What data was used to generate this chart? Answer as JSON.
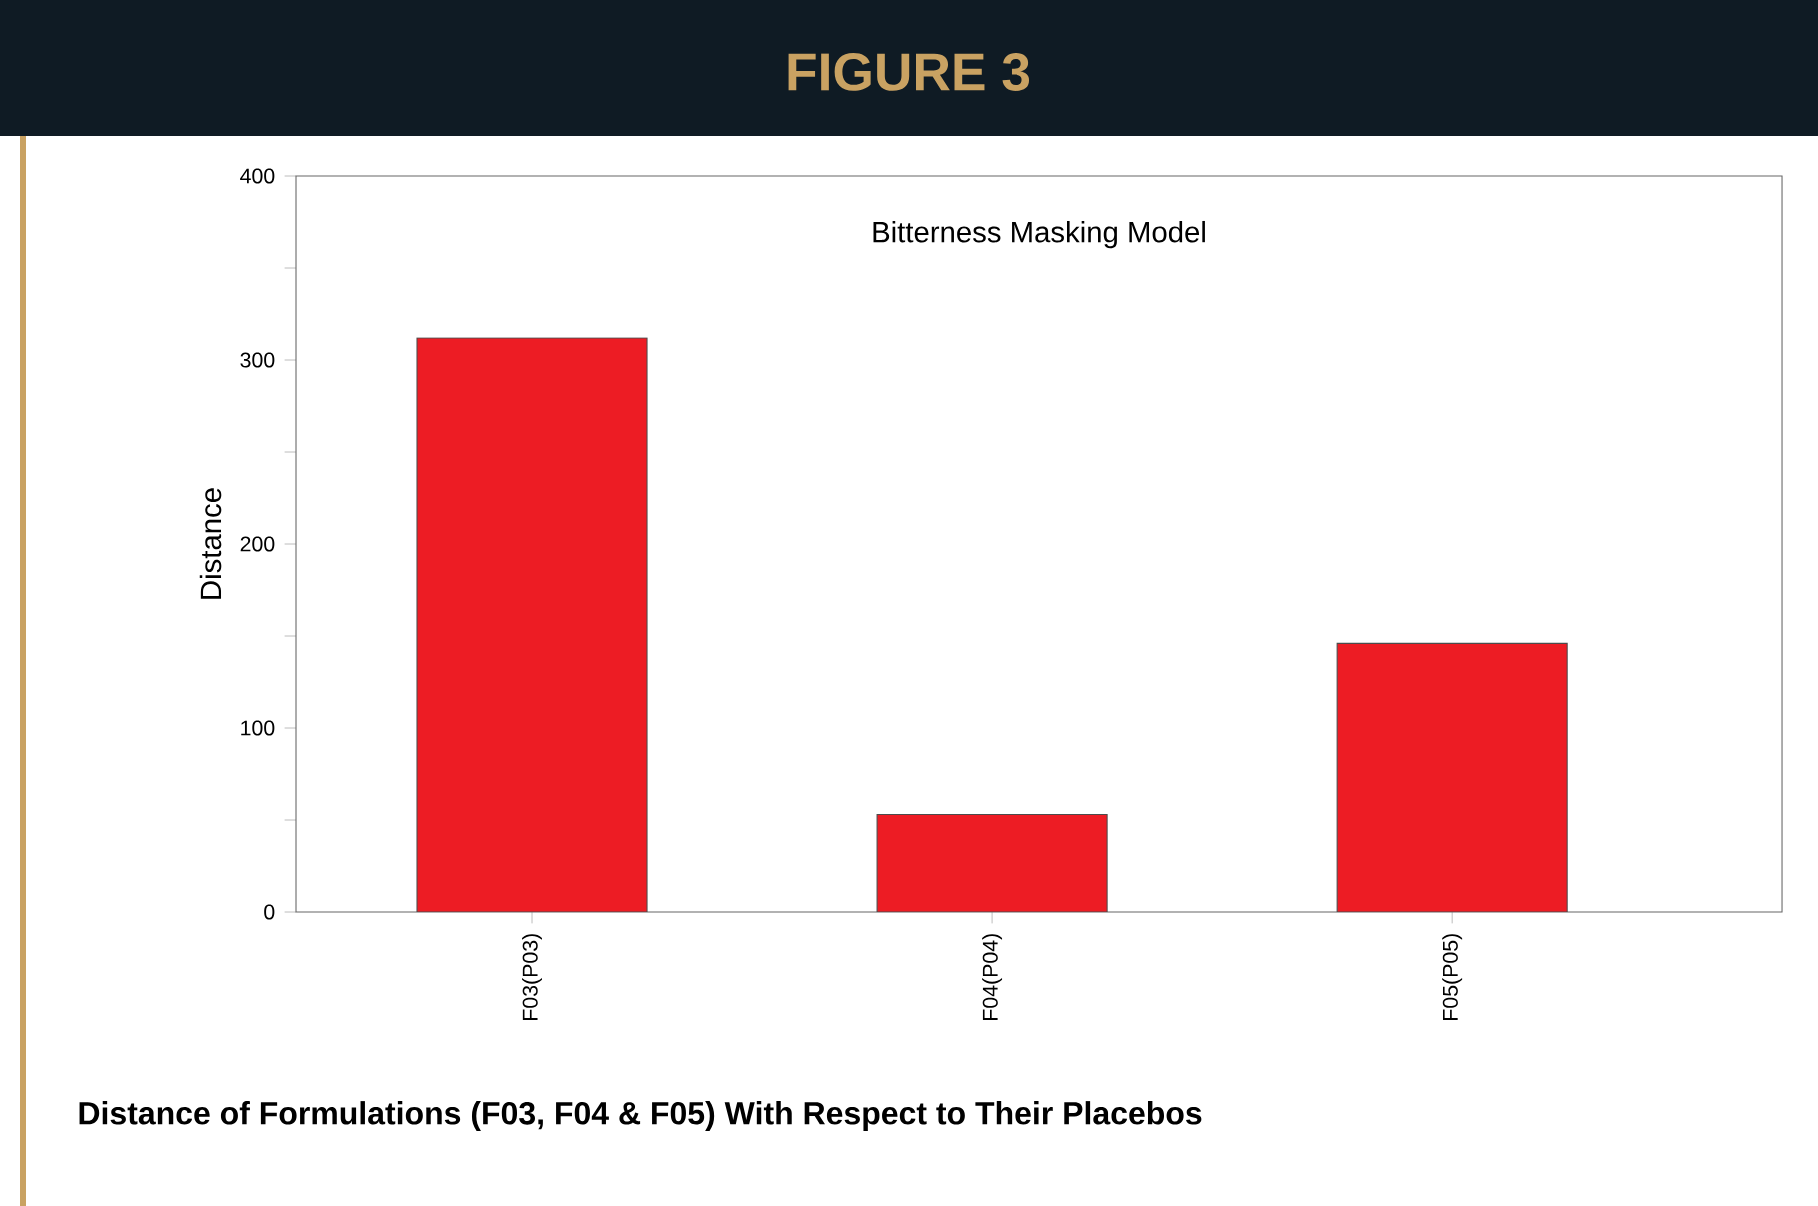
{
  "chart_data": {
    "type": "bar",
    "title": "FIGURE 3",
    "subtitle": "Bitterness Masking Model",
    "ylabel": "Distance",
    "categories": [
      "F03(P03)",
      "F04(P04)",
      "F05(P05)"
    ],
    "values": [
      312,
      53,
      146
    ],
    "color": "#ed1c24",
    "ylim": [
      0,
      400
    ],
    "yticks": [
      0,
      {
        "value": 50,
        "label": null
      },
      100,
      {
        "value": 150,
        "label": null
      },
      200,
      {
        "value": 250,
        "label": null
      },
      300,
      {
        "value": 350,
        "label": null
      },
      400
    ],
    "grid": false,
    "annotations": [
      "Distance of Formulations (F03, F04 & F05) With Respect to Their Placebos"
    ]
  }
}
